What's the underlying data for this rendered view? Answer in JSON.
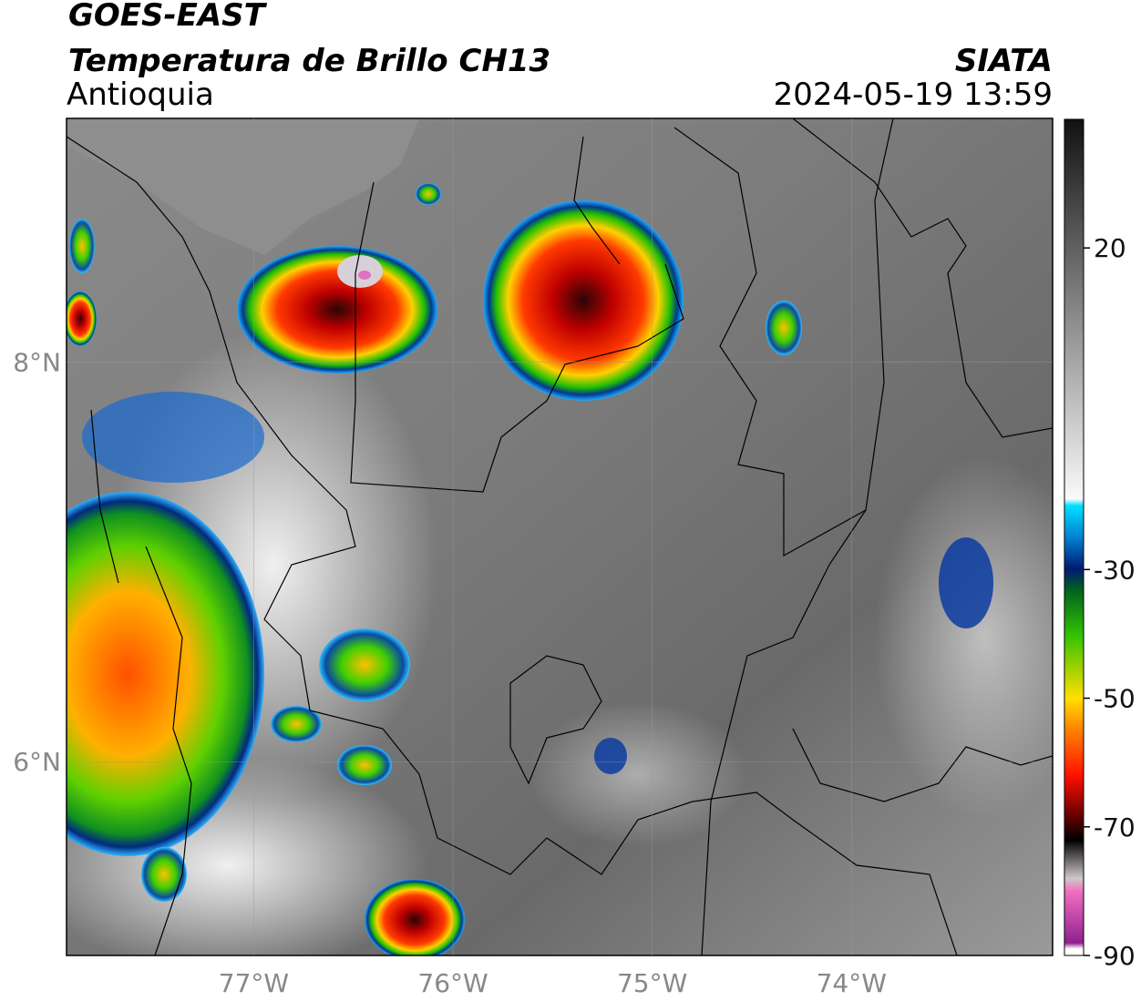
{
  "header": {
    "satellite": "GOES-EAST",
    "product": "Temperatura de Brillo CH13",
    "region": "Antioquia",
    "source": "SIATA",
    "datetime": "2024-05-19 13:59"
  },
  "map": {
    "lon_range": [
      -77.94,
      -72.99
    ],
    "lat_range": [
      5.03,
      9.22
    ],
    "lon_ticks": [
      {
        "value": -77,
        "label": "77°W"
      },
      {
        "value": -76,
        "label": "76°W"
      },
      {
        "value": -75,
        "label": "75°W"
      },
      {
        "value": -74,
        "label": "74°W"
      }
    ],
    "lat_ticks": [
      {
        "value": 8,
        "label": "8°N"
      },
      {
        "value": 6,
        "label": "6°N"
      }
    ]
  },
  "colorbar": {
    "range": [
      -90,
      40
    ],
    "ticks": [
      20,
      -30,
      -50,
      -70,
      -90
    ]
  }
}
